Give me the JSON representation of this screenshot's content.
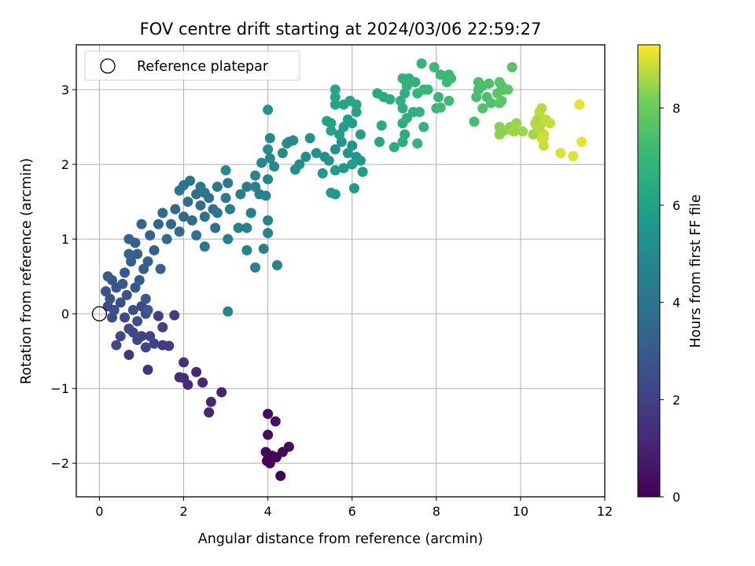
{
  "chart_data": {
    "type": "scatter",
    "title": "FOV centre drift starting at 2024/03/06 22:59:27",
    "xlabel": "Angular distance from reference (arcmin)",
    "ylabel": "Rotation from reference (arcmin)",
    "colorbar_label": "Hours from first FF file",
    "colormap": "viridis",
    "xlim": [
      -0.55,
      12
    ],
    "ylim": [
      -2.45,
      3.6
    ],
    "clim": [
      0,
      9.3
    ],
    "xticks": [
      0,
      2,
      4,
      6,
      8,
      10,
      12
    ],
    "yticks": [
      -2,
      -1,
      0,
      1,
      2,
      3
    ],
    "yticklabels": [
      "−2",
      "−1",
      "0",
      "1",
      "2",
      "3"
    ],
    "cticks": [
      0,
      2,
      4,
      6,
      8
    ],
    "grid": true,
    "legend": {
      "position": "top-left",
      "label": "Reference platepar"
    },
    "reference_point": {
      "x": 0,
      "y": 0
    },
    "points": [
      [
        4.0,
        -1.95,
        0.1
      ],
      [
        4.1,
        -1.9,
        0.15
      ],
      [
        3.95,
        -1.85,
        0.2
      ],
      [
        4.05,
        -2.0,
        0.12
      ],
      [
        4.2,
        -1.92,
        0.18
      ],
      [
        4.35,
        -1.85,
        0.25
      ],
      [
        4.5,
        -1.78,
        0.3
      ],
      [
        4.3,
        -2.17,
        0.05
      ],
      [
        4.0,
        -1.62,
        0.35
      ],
      [
        4.0,
        -1.34,
        0.4
      ],
      [
        4.18,
        -1.44,
        0.45
      ],
      [
        3.98,
        -1.97,
        0.08
      ],
      [
        2.9,
        -1.05,
        1.0
      ],
      [
        2.6,
        -1.32,
        1.05
      ],
      [
        2.65,
        -1.18,
        1.1
      ],
      [
        2.45,
        -0.92,
        1.15
      ],
      [
        2.3,
        -0.78,
        1.2
      ],
      [
        2.1,
        -0.95,
        1.25
      ],
      [
        2.0,
        -0.86,
        1.3
      ],
      [
        1.9,
        -0.85,
        1.35
      ],
      [
        2.0,
        -0.65,
        1.4
      ],
      [
        1.15,
        -0.75,
        1.6
      ],
      [
        0.7,
        -0.55,
        1.7
      ],
      [
        1.5,
        -0.42,
        1.8
      ],
      [
        1.65,
        -0.43,
        1.85
      ],
      [
        1.78,
        -0.02,
        1.9
      ],
      [
        1.4,
        -0.03,
        1.95
      ],
      [
        1.5,
        -0.18,
        2.0
      ],
      [
        1.3,
        -0.4,
        2.05
      ],
      [
        1.0,
        -0.3,
        2.1
      ],
      [
        1.1,
        -0.45,
        2.1
      ],
      [
        1.2,
        -0.3,
        2.15
      ],
      [
        0.9,
        -0.35,
        2.2
      ],
      [
        0.8,
        -0.25,
        2.25
      ],
      [
        0.5,
        -0.3,
        2.3
      ],
      [
        0.4,
        -0.42,
        2.3
      ],
      [
        0.6,
        -0.05,
        2.35
      ],
      [
        0.7,
        -0.2,
        2.4
      ],
      [
        1.0,
        0.1,
        2.4
      ],
      [
        1.1,
        0.0,
        2.45
      ],
      [
        0.3,
        -0.05,
        2.5
      ],
      [
        0.2,
        0.1,
        2.5
      ],
      [
        0.35,
        0.05,
        2.55
      ],
      [
        0.5,
        0.15,
        2.55
      ],
      [
        0.9,
        -0.1,
        2.6
      ],
      [
        0.8,
        0.05,
        2.6
      ],
      [
        0.65,
        0.25,
        2.65
      ],
      [
        0.25,
        0.2,
        2.7
      ],
      [
        0.15,
        0.3,
        2.7
      ],
      [
        0.4,
        0.35,
        2.75
      ],
      [
        0.3,
        0.45,
        2.8
      ],
      [
        0.55,
        0.4,
        2.85
      ],
      [
        0.85,
        0.35,
        2.9
      ],
      [
        1.1,
        0.2,
        2.95
      ],
      [
        1.15,
        0.05,
        2.95
      ],
      [
        0.2,
        0.5,
        3.0
      ],
      [
        0.6,
        0.55,
        3.0
      ],
      [
        0.95,
        0.45,
        3.05
      ],
      [
        1.05,
        0.6,
        3.1
      ],
      [
        0.75,
        0.7,
        3.1
      ],
      [
        0.9,
        0.8,
        3.15
      ],
      [
        0.85,
        0.95,
        3.2
      ],
      [
        1.3,
        0.85,
        3.2
      ],
      [
        1.15,
        0.7,
        3.25
      ],
      [
        1.45,
        0.6,
        3.3
      ],
      [
        1.2,
        1.05,
        3.3
      ],
      [
        1.0,
        1.2,
        3.35
      ],
      [
        0.7,
        1.0,
        3.4
      ],
      [
        0.7,
        0.8,
        3.4
      ],
      [
        1.4,
        1.2,
        3.45
      ],
      [
        1.6,
        1.0,
        3.5
      ],
      [
        1.7,
        1.2,
        3.5
      ],
      [
        1.8,
        1.4,
        3.55
      ],
      [
        1.5,
        1.35,
        3.6
      ],
      [
        1.9,
        1.1,
        3.6
      ],
      [
        2.0,
        1.3,
        3.65
      ],
      [
        2.1,
        1.5,
        3.7
      ],
      [
        2.2,
        1.25,
        3.7
      ],
      [
        2.3,
        1.6,
        3.75
      ],
      [
        2.4,
        1.45,
        3.8
      ],
      [
        2.5,
        1.3,
        3.85
      ],
      [
        2.6,
        1.55,
        3.9
      ],
      [
        2.7,
        1.4,
        3.9
      ],
      [
        2.3,
        1.05,
        3.95
      ],
      [
        2.5,
        0.9,
        3.95
      ],
      [
        2.75,
        1.15,
        4.0
      ],
      [
        2.8,
        1.35,
        4.05
      ],
      [
        1.9,
        1.65,
        4.05
      ],
      [
        2.0,
        1.72,
        4.1
      ],
      [
        2.15,
        1.78,
        4.1
      ],
      [
        2.4,
        1.7,
        4.15
      ],
      [
        2.5,
        1.62,
        4.2
      ],
      [
        2.8,
        1.7,
        4.25
      ],
      [
        3.05,
        1.75,
        4.3
      ],
      [
        3.0,
        1.55,
        4.35
      ],
      [
        3.1,
        1.4,
        4.4
      ],
      [
        3.35,
        1.6,
        4.45
      ],
      [
        3.5,
        1.7,
        4.5
      ],
      [
        3.05,
        1.0,
        4.5
      ],
      [
        3.3,
        1.15,
        4.55
      ],
      [
        3.6,
        1.35,
        4.6
      ],
      [
        3.5,
        0.85,
        4.6
      ],
      [
        3.7,
        0.62,
        4.65
      ],
      [
        3.9,
        0.87,
        4.65
      ],
      [
        4.0,
        1.08,
        4.7
      ],
      [
        4.0,
        1.25,
        4.7
      ],
      [
        4.22,
        0.65,
        4.75
      ],
      [
        3.05,
        0.03,
        4.8
      ],
      [
        3.5,
        1.15,
        4.6
      ],
      [
        3.7,
        1.7,
        4.6
      ],
      [
        3.8,
        1.6,
        4.7
      ],
      [
        3.95,
        1.58,
        4.75
      ],
      [
        4.0,
        1.8,
        4.8
      ],
      [
        3.7,
        1.85,
        4.8
      ],
      [
        3.85,
        2.02,
        4.85
      ],
      [
        4.05,
        2.08,
        4.9
      ],
      [
        4.15,
        1.97,
        4.95
      ],
      [
        4.35,
        2.15,
        5.0
      ],
      [
        4.5,
        2.3,
        5.0
      ],
      [
        4.6,
        2.32,
        5.05
      ],
      [
        4.45,
        2.28,
        5.1
      ],
      [
        4.05,
        2.35,
        5.1
      ],
      [
        4.0,
        2.2,
        5.15
      ],
      [
        4.75,
        2.0,
        5.2
      ],
      [
        4.9,
        2.1,
        5.2
      ],
      [
        5.0,
        2.35,
        5.25
      ],
      [
        5.15,
        2.15,
        5.3
      ],
      [
        4.65,
        1.93,
        5.3
      ],
      [
        4.0,
        2.73,
        5.35
      ],
      [
        3.0,
        1.92,
        4.9
      ],
      [
        5.35,
        2.1,
        5.35
      ],
      [
        5.45,
        2.05,
        5.4
      ],
      [
        5.6,
        2.2,
        5.4
      ],
      [
        5.75,
        2.3,
        5.45
      ],
      [
        5.9,
        2.15,
        5.5
      ],
      [
        6.0,
        2.25,
        5.5
      ],
      [
        6.1,
        2.1,
        5.55
      ],
      [
        6.2,
        2.05,
        5.6
      ],
      [
        5.8,
        1.95,
        5.6
      ],
      [
        5.6,
        1.92,
        5.65
      ],
      [
        5.3,
        1.88,
        5.65
      ],
      [
        5.5,
        1.62,
        5.7
      ],
      [
        5.6,
        1.6,
        5.7
      ],
      [
        6.05,
        1.68,
        5.75
      ],
      [
        6.25,
        1.9,
        5.8
      ],
      [
        6.0,
        2.0,
        5.8
      ],
      [
        5.7,
        2.4,
        5.85
      ],
      [
        5.8,
        2.5,
        5.85
      ],
      [
        5.9,
        2.6,
        5.9
      ],
      [
        6.0,
        2.55,
        5.9
      ],
      [
        6.2,
        2.4,
        5.95
      ],
      [
        6.1,
        2.7,
        5.95
      ],
      [
        5.5,
        2.45,
        6.0
      ],
      [
        5.5,
        2.55,
        6.0
      ],
      [
        5.4,
        2.58,
        6.05
      ],
      [
        5.6,
        2.8,
        6.05
      ],
      [
        5.8,
        2.8,
        6.1
      ],
      [
        5.95,
        2.85,
        6.15
      ],
      [
        6.1,
        2.8,
        6.15
      ],
      [
        5.6,
        2.9,
        6.2
      ],
      [
        5.6,
        3.0,
        6.2
      ],
      [
        6.65,
        2.3,
        6.3
      ],
      [
        6.6,
        2.95,
        6.3
      ],
      [
        6.75,
        2.9,
        6.35
      ],
      [
        6.9,
        2.87,
        6.4
      ],
      [
        6.7,
        2.52,
        6.4
      ],
      [
        7.0,
        2.23,
        6.45
      ],
      [
        7.2,
        2.3,
        6.5
      ],
      [
        7.25,
        2.4,
        6.5
      ],
      [
        7.2,
        2.55,
        6.55
      ],
      [
        7.3,
        2.62,
        6.55
      ],
      [
        7.45,
        2.7,
        6.6
      ],
      [
        7.2,
        2.75,
        6.6
      ],
      [
        7.15,
        2.85,
        6.65
      ],
      [
        7.25,
        2.95,
        6.65
      ],
      [
        7.3,
        3.05,
        6.7
      ],
      [
        7.2,
        3.15,
        6.7
      ],
      [
        7.35,
        3.15,
        6.75
      ],
      [
        7.5,
        3.1,
        6.75
      ],
      [
        7.55,
        2.95,
        6.8
      ],
      [
        7.6,
        2.7,
        6.8
      ],
      [
        7.7,
        2.5,
        6.85
      ],
      [
        7.55,
        2.28,
        6.85
      ],
      [
        7.65,
        3.35,
        6.9
      ],
      [
        7.7,
        3.0,
        6.95
      ],
      [
        7.8,
        3.0,
        6.95
      ],
      [
        8.0,
        2.75,
        7.0
      ],
      [
        8.05,
        2.9,
        7.0
      ],
      [
        7.95,
        3.3,
        7.05
      ],
      [
        8.1,
        3.2,
        7.05
      ],
      [
        8.25,
        3.1,
        7.1
      ],
      [
        8.3,
        3.2,
        7.1
      ],
      [
        8.35,
        3.15,
        7.15
      ],
      [
        8.3,
        2.85,
        7.15
      ],
      [
        8.1,
        2.76,
        7.15
      ],
      [
        7.3,
        3.1,
        6.8
      ],
      [
        8.9,
        2.57,
        7.3
      ],
      [
        8.95,
        2.9,
        7.35
      ],
      [
        9.0,
        3.0,
        7.35
      ],
      [
        9.1,
        3.05,
        7.4
      ],
      [
        9.0,
        3.1,
        7.4
      ],
      [
        9.2,
        2.9,
        7.45
      ],
      [
        9.25,
        3.08,
        7.45
      ],
      [
        9.3,
        2.82,
        7.5
      ],
      [
        9.1,
        2.75,
        7.55
      ],
      [
        9.5,
        3.1,
        7.6
      ],
      [
        9.55,
        3.05,
        7.65
      ],
      [
        9.6,
        3.0,
        7.65
      ],
      [
        9.45,
        2.95,
        7.7
      ],
      [
        9.7,
        3.0,
        7.7
      ],
      [
        9.55,
        2.85,
        7.75
      ],
      [
        9.5,
        2.82,
        7.75
      ],
      [
        9.8,
        3.3,
        7.6
      ],
      [
        9.5,
        2.5,
        8.3
      ],
      [
        9.6,
        2.45,
        8.35
      ],
      [
        9.5,
        2.4,
        8.35
      ],
      [
        9.75,
        2.5,
        8.4
      ],
      [
        9.8,
        2.45,
        8.45
      ],
      [
        9.9,
        2.55,
        8.45
      ],
      [
        9.85,
        2.44,
        8.5
      ],
      [
        10.05,
        2.44,
        8.5
      ],
      [
        10.3,
        2.4,
        8.55
      ],
      [
        10.4,
        2.5,
        8.6
      ],
      [
        10.4,
        2.6,
        8.65
      ],
      [
        10.5,
        2.55,
        8.7
      ],
      [
        10.45,
        2.7,
        8.75
      ],
      [
        10.5,
        2.75,
        8.75
      ],
      [
        10.6,
        2.6,
        8.8
      ],
      [
        10.55,
        2.4,
        8.8
      ],
      [
        10.55,
        2.25,
        8.85
      ],
      [
        10.7,
        2.55,
        8.85
      ],
      [
        10.5,
        2.35,
        8.9
      ],
      [
        10.55,
        2.35,
        8.9
      ],
      [
        10.95,
        2.15,
        9.0
      ],
      [
        11.25,
        2.11,
        9.05
      ],
      [
        11.45,
        2.3,
        9.1
      ],
      [
        11.4,
        2.8,
        9.1
      ],
      [
        10.35,
        2.55,
        8.7
      ],
      [
        10.45,
        2.48,
        8.75
      ]
    ]
  }
}
